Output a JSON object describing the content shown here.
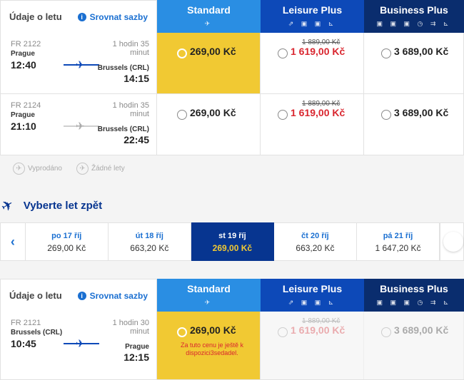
{
  "outbound": {
    "info_title": "Údaje o letu",
    "compare_label": "Srovnat sazby",
    "columns": [
      {
        "name": "Standard",
        "icons": "✈"
      },
      {
        "name": "Leisure Plus",
        "icons": "⇗ ▣ ▣ ⊾"
      },
      {
        "name": "Business Plus",
        "icons": "▣ ▣ ▣ ◷ ⇉ ⊾"
      }
    ],
    "flights": [
      {
        "number": "FR 2122",
        "from": "Prague",
        "dep": "12:40",
        "duration": "1 hodin 35 minut",
        "to": "Brussels (CRL)",
        "arr": "14:15",
        "standard": "269,00 Kč",
        "leisure_old": "1 889,00 Kč",
        "leisure": "1 619,00 Kč",
        "business": "3 689,00 Kč"
      },
      {
        "number": "FR 2124",
        "from": "Prague",
        "dep": "21:10",
        "duration": "1 hodin 35 minut",
        "to": "Brussels (CRL)",
        "arr": "22:45",
        "standard": "269,00 Kč",
        "leisure_old": "1 889,00 Kč",
        "leisure": "1 619,00 Kč",
        "business": "3 689,00 Kč"
      }
    ]
  },
  "legend": {
    "sold_out": "Vyprodáno",
    "no_flights": "Žádné lety"
  },
  "return_title": "Vyberte let zpět",
  "dates": [
    {
      "day": "po 17 říj",
      "price": "269,00 Kč"
    },
    {
      "day": "út 18 říj",
      "price": "663,20 Kč"
    },
    {
      "day": "st 19 říj",
      "price": "269,00 Kč"
    },
    {
      "day": "čt 20 říj",
      "price": "663,20 Kč"
    },
    {
      "day": "pá 21 říj",
      "price": "1 647,20 Kč"
    }
  ],
  "inbound": {
    "info_title": "Údaje o letu",
    "compare_label": "Srovnat sazby",
    "flight": {
      "number": "FR 2121",
      "from": "Brussels (CRL)",
      "dep": "10:45",
      "duration": "1 hodin 30 minut",
      "to": "Prague",
      "arr": "12:15",
      "standard": "269,00 Kč",
      "note": "Za tuto cenu je ještě k dispozici3sedadel.",
      "leisure_old": "1 889,00 Kč",
      "leisure": "1 619,00 Kč",
      "business": "3 689,00 Kč"
    }
  }
}
